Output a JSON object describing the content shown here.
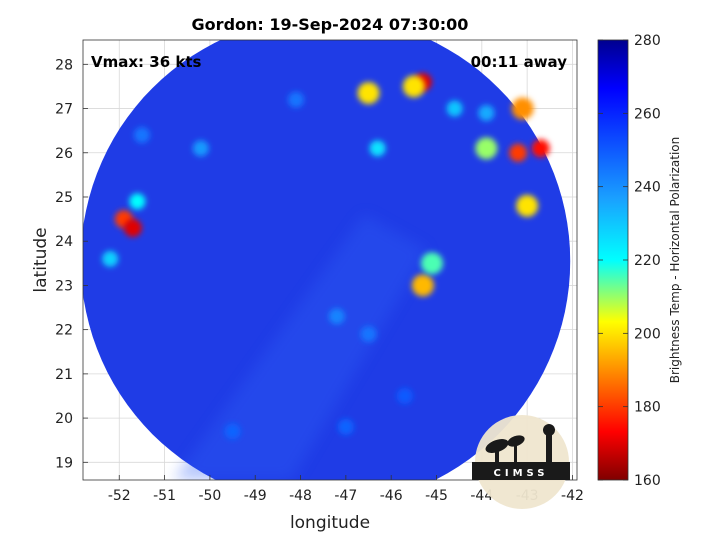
{
  "chart_data": {
    "type": "heatmap",
    "title": "Gordon: 19-Sep-2024 07:30:00",
    "xlabel": "longitude",
    "ylabel": "latitude",
    "xlim": [
      -52.8,
      -41.9
    ],
    "ylim": [
      18.6,
      28.55
    ],
    "xticks": [
      -52,
      -51,
      -50,
      -49,
      -48,
      -47,
      -46,
      -45,
      -44,
      -43,
      -42
    ],
    "yticks": [
      19,
      20,
      21,
      22,
      23,
      24,
      25,
      26,
      27,
      28
    ],
    "grid": true,
    "colorbar": {
      "label": "Brightness Temp - Horizontal Polarization",
      "range": [
        160,
        280
      ],
      "ticks": [
        160,
        180,
        200,
        220,
        240,
        260,
        280
      ],
      "colormap": "jet"
    },
    "annotations": {
      "vmax": "Vmax: 36 kts",
      "away": "00:11 away"
    },
    "background_tb": 265,
    "features": [
      {
        "lon": -45.3,
        "lat": 27.6,
        "tb": 170
      },
      {
        "lon": -45.5,
        "lat": 27.5,
        "tb": 200
      },
      {
        "lon": -46.5,
        "lat": 27.35,
        "tb": 200
      },
      {
        "lon": -46.3,
        "lat": 26.1,
        "tb": 225
      },
      {
        "lon": -44.6,
        "lat": 27.0,
        "tb": 230
      },
      {
        "lon": -43.9,
        "lat": 26.9,
        "tb": 235
      },
      {
        "lon": -43.2,
        "lat": 26.0,
        "tb": 180
      },
      {
        "lon": -42.7,
        "lat": 26.1,
        "tb": 175
      },
      {
        "lon": -43.9,
        "lat": 26.1,
        "tb": 210
      },
      {
        "lon": -43.1,
        "lat": 27.0,
        "tb": 190
      },
      {
        "lon": -43.0,
        "lat": 24.8,
        "tb": 200
      },
      {
        "lon": -51.9,
        "lat": 24.5,
        "tb": 180
      },
      {
        "lon": -51.7,
        "lat": 24.3,
        "tb": 170
      },
      {
        "lon": -51.6,
        "lat": 24.9,
        "tb": 220
      },
      {
        "lon": -52.2,
        "lat": 23.6,
        "tb": 228
      },
      {
        "lon": -45.3,
        "lat": 23.0,
        "tb": 195
      },
      {
        "lon": -45.1,
        "lat": 23.5,
        "tb": 215
      },
      {
        "lon": -50.2,
        "lat": 26.1,
        "tb": 238
      },
      {
        "lon": -51.5,
        "lat": 26.4,
        "tb": 245
      },
      {
        "lon": -47.2,
        "lat": 22.3,
        "tb": 242
      },
      {
        "lon": -46.5,
        "lat": 21.9,
        "tb": 245
      },
      {
        "lon": -49.5,
        "lat": 19.7,
        "tb": 248
      },
      {
        "lon": -47.0,
        "lat": 19.8,
        "tb": 248
      },
      {
        "lon": -45.7,
        "lat": 20.5,
        "tb": 250
      },
      {
        "lon": -48.1,
        "lat": 27.2,
        "tb": 245
      }
    ]
  },
  "logo": {
    "text": "CIMSS"
  }
}
